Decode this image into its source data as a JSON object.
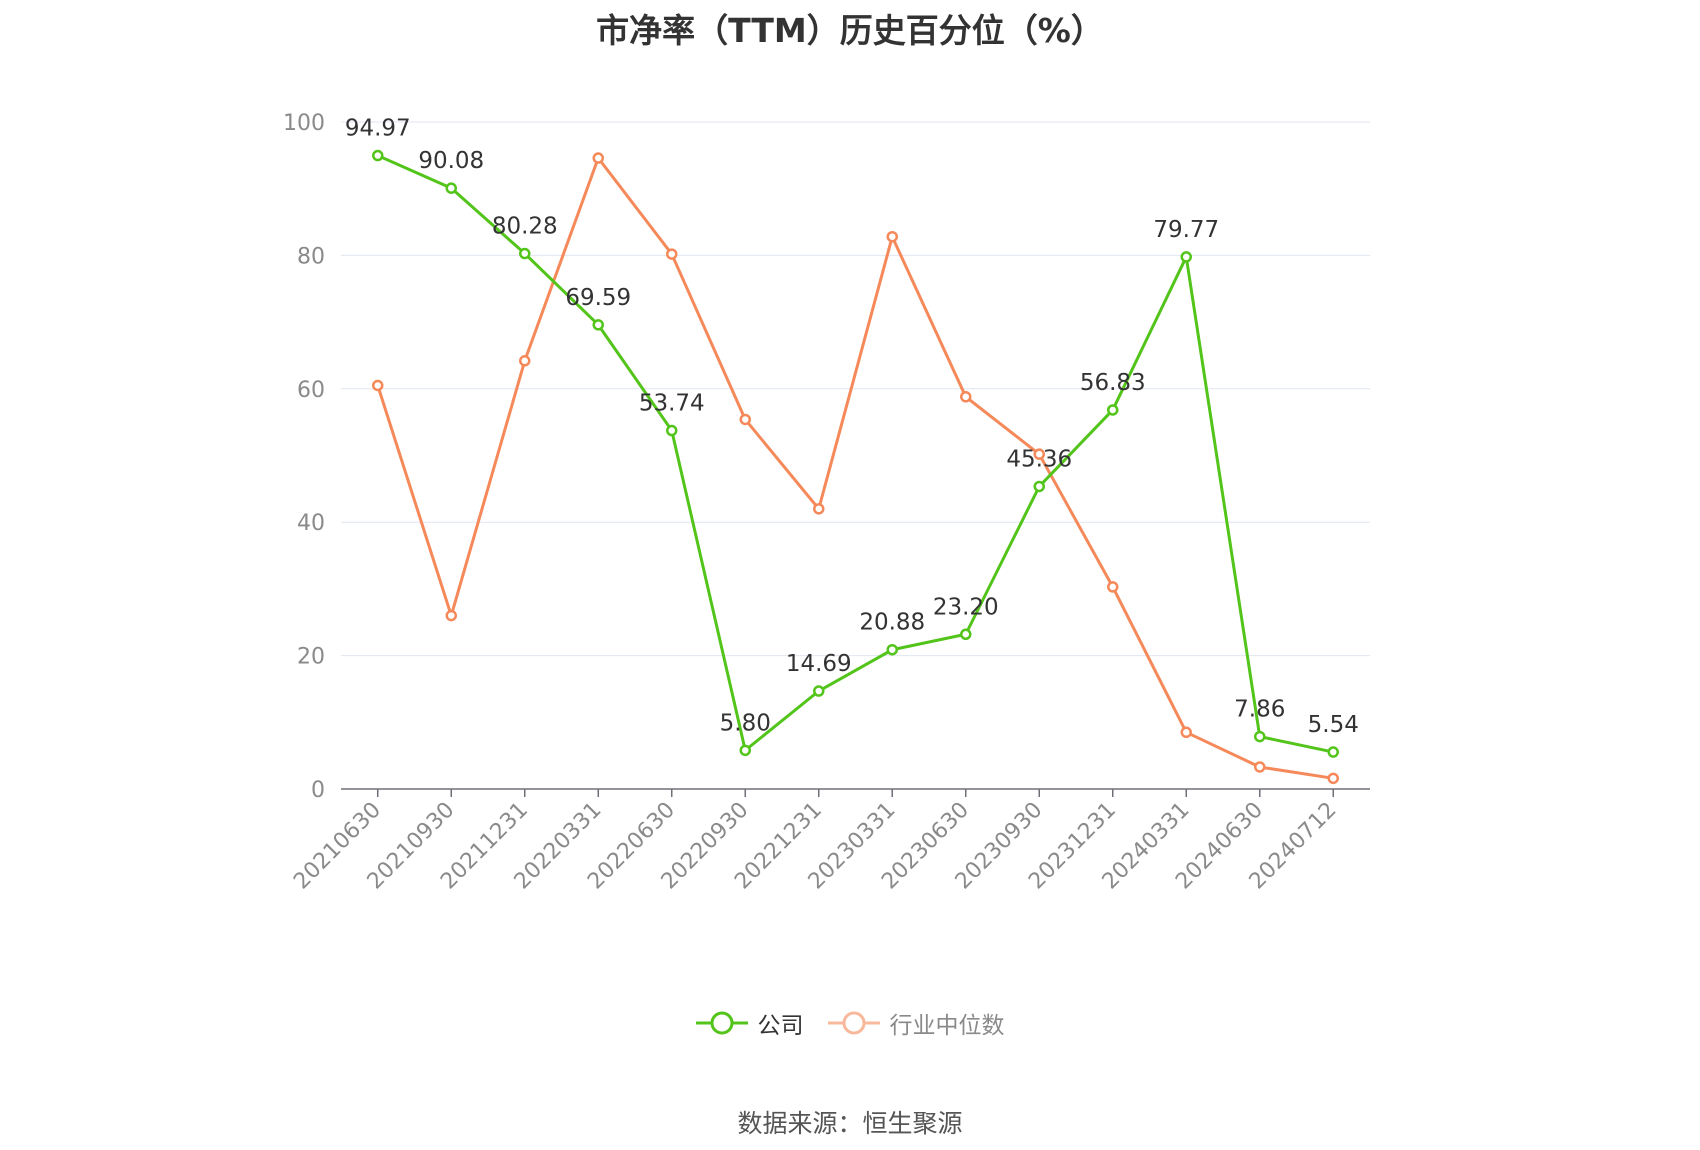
{
  "title": "市净率（TTM）历史百分位（%）",
  "source": "数据来源：恒生聚源",
  "legend": {
    "company": "公司",
    "industry": "行业中位数"
  },
  "colors": {
    "company": "#52c41a",
    "industry": "#f5895a",
    "grid": "#e0e6f1",
    "axis": "#6e7079"
  },
  "chart_data": {
    "type": "line",
    "title": "市净率（TTM）历史百分位（%）",
    "xlabel": "",
    "ylabel": "",
    "ylim": [
      0,
      100
    ],
    "yticks": [
      0,
      20,
      40,
      60,
      80,
      100
    ],
    "grid": true,
    "legend_position": "bottom",
    "categories": [
      "20210630",
      "20210930",
      "20211231",
      "20220331",
      "20220630",
      "20220930",
      "20221231",
      "20230331",
      "20230630",
      "20230930",
      "20231231",
      "20240331",
      "20240630",
      "20240712"
    ],
    "series": [
      {
        "name": "公司",
        "values": [
          94.97,
          90.08,
          80.28,
          69.59,
          53.74,
          5.8,
          14.69,
          20.88,
          23.2,
          45.36,
          56.83,
          79.77,
          7.86,
          5.54
        ],
        "labels": [
          "94.97",
          "90.08",
          "80.28",
          "69.59",
          "53.74",
          "5.80",
          "14.69",
          "20.88",
          "23.20",
          "45.36",
          "56.83",
          "79.77",
          "7.86",
          "5.54"
        ],
        "show_labels": true
      },
      {
        "name": "行业中位数",
        "values": [
          60.5,
          26.0,
          64.2,
          94.6,
          80.2,
          55.4,
          42.0,
          82.8,
          58.8,
          50.2,
          30.3,
          8.5,
          3.3,
          1.6
        ],
        "show_labels": false
      }
    ]
  }
}
